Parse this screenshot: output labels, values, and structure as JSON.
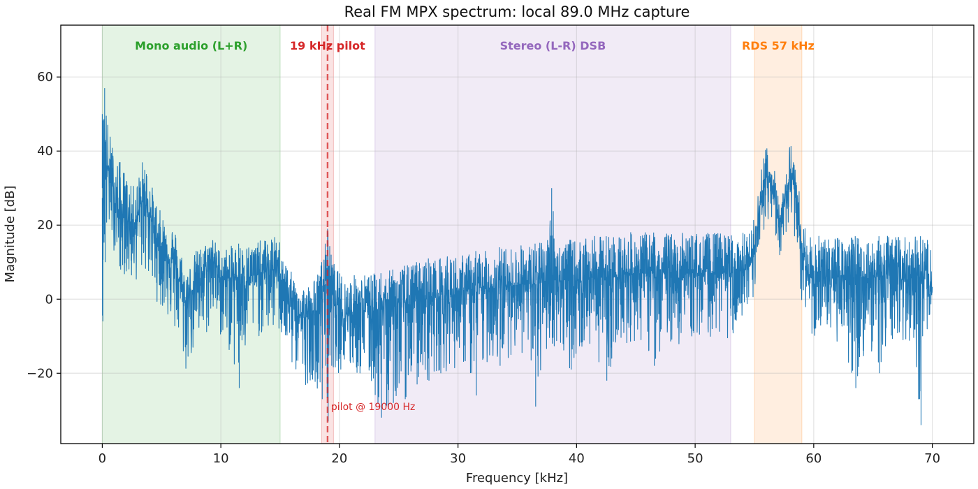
{
  "chart_data": {
    "type": "line",
    "title": "Real FM MPX spectrum: local 89.0 MHz capture",
    "xlabel": "Frequency [kHz]",
    "ylabel": "Magnitude [dB]",
    "xlim": [
      -3.5,
      73.5
    ],
    "ylim": [
      -39,
      74
    ],
    "xticks": [
      0,
      10,
      20,
      30,
      40,
      50,
      60,
      70
    ],
    "yticks": [
      -20,
      0,
      20,
      40,
      60
    ],
    "ytick_labels": [
      "−20",
      "0",
      "20",
      "40",
      "60"
    ],
    "grid": true,
    "line_color": "#1f77b4",
    "bands": [
      {
        "label": "Mono audio (L+R)",
        "x_start": 0,
        "x_end": 15,
        "color": "#2ca02c",
        "label_x": 7.5
      },
      {
        "label": "19 kHz pilot",
        "x_start": 18.5,
        "x_end": 19.5,
        "color": "#d62728",
        "label_x": 19
      },
      {
        "label": "Stereo (L-R) DSB",
        "x_start": 23,
        "x_end": 53,
        "color": "#9467bd",
        "label_x": 38
      },
      {
        "label": "RDS 57 kHz",
        "x_start": 55,
        "x_end": 59,
        "color": "#ff7f0e",
        "label_x": 57
      }
    ],
    "pilot_line": {
      "x": 19,
      "label": "pilot @ 19000 Hz",
      "color": "#d62728"
    },
    "series": [
      {
        "envelope": [
          {
            "x": 0.0,
            "y": 30,
            "hi": 50,
            "lo": -6
          },
          {
            "x": 0.2,
            "y": 38,
            "hi": 57,
            "lo": 10
          },
          {
            "x": 0.5,
            "y": 35,
            "hi": 47,
            "lo": 17
          },
          {
            "x": 1.0,
            "y": 27,
            "hi": 40,
            "lo": 13
          },
          {
            "x": 1.5,
            "y": 22,
            "hi": 37,
            "lo": 8
          },
          {
            "x": 2.0,
            "y": 22,
            "hi": 34,
            "lo": 6
          },
          {
            "x": 2.5,
            "y": 20,
            "hi": 30,
            "lo": 4
          },
          {
            "x": 3.0,
            "y": 22,
            "hi": 33,
            "lo": 5
          },
          {
            "x": 3.5,
            "y": 27,
            "hi": 39,
            "lo": 8
          },
          {
            "x": 4.0,
            "y": 23,
            "hi": 33,
            "lo": 4
          },
          {
            "x": 4.5,
            "y": 17,
            "hi": 27,
            "lo": 0
          },
          {
            "x": 5.0,
            "y": 14,
            "hi": 23,
            "lo": -3
          },
          {
            "x": 5.5,
            "y": 12,
            "hi": 22,
            "lo": -5
          },
          {
            "x": 6.0,
            "y": 10,
            "hi": 20,
            "lo": -9
          },
          {
            "x": 6.5,
            "y": 5,
            "hi": 16,
            "lo": -12
          },
          {
            "x": 7.0,
            "y": -1,
            "hi": 8,
            "lo": -21
          },
          {
            "x": 7.5,
            "y": 2,
            "hi": 10,
            "lo": -16
          },
          {
            "x": 8.0,
            "y": 5,
            "hi": 14,
            "lo": -14
          },
          {
            "x": 8.5,
            "y": 6,
            "hi": 14,
            "lo": -12
          },
          {
            "x": 9.0,
            "y": 8,
            "hi": 17,
            "lo": -9
          },
          {
            "x": 9.3,
            "y": 12,
            "hi": 17,
            "lo": -5
          },
          {
            "x": 9.8,
            "y": 6,
            "hi": 14,
            "lo": -10
          },
          {
            "x": 10.5,
            "y": 5,
            "hi": 14,
            "lo": -12
          },
          {
            "x": 11.5,
            "y": 6,
            "hi": 15,
            "lo": -24
          },
          {
            "x": 12.5,
            "y": 6,
            "hi": 15,
            "lo": -11
          },
          {
            "x": 13.5,
            "y": 7,
            "hi": 16,
            "lo": -10
          },
          {
            "x": 14.5,
            "y": 8,
            "hi": 17,
            "lo": -9
          },
          {
            "x": 15.0,
            "y": 7,
            "hi": 16,
            "lo": -10
          },
          {
            "x": 15.5,
            "y": 2,
            "hi": 10,
            "lo": -15
          },
          {
            "x": 16.0,
            "y": -2,
            "hi": 7,
            "lo": -19
          },
          {
            "x": 16.5,
            "y": -4,
            "hi": 5,
            "lo": -21
          },
          {
            "x": 17.0,
            "y": -5,
            "hi": 4,
            "lo": -24
          },
          {
            "x": 17.5,
            "y": -5,
            "hi": 4,
            "lo": -22
          },
          {
            "x": 18.0,
            "y": -4,
            "hi": 6,
            "lo": -23
          },
          {
            "x": 18.5,
            "y": 0,
            "hi": 10,
            "lo": -27
          },
          {
            "x": 18.8,
            "y": 4,
            "hi": 15,
            "lo": -18
          },
          {
            "x": 19.0,
            "y": 10,
            "hi": 19,
            "lo": -33
          },
          {
            "x": 19.3,
            "y": 3,
            "hi": 12,
            "lo": -18
          },
          {
            "x": 19.8,
            "y": -3,
            "hi": 8,
            "lo": -20
          },
          {
            "x": 20.5,
            "y": -4,
            "hi": 6,
            "lo": -20
          },
          {
            "x": 21.5,
            "y": -3,
            "hi": 7,
            "lo": -21
          },
          {
            "x": 22.5,
            "y": -3,
            "hi": 7,
            "lo": -23
          },
          {
            "x": 23.5,
            "y": -3,
            "hi": 7,
            "lo": -32
          },
          {
            "x": 24.5,
            "y": -2,
            "hi": 8,
            "lo": -28
          },
          {
            "x": 25.5,
            "y": -1,
            "hi": 9,
            "lo": -27
          },
          {
            "x": 26.5,
            "y": 0,
            "hi": 10,
            "lo": -23
          },
          {
            "x": 27.5,
            "y": 0,
            "hi": 11,
            "lo": -22
          },
          {
            "x": 28.5,
            "y": 1,
            "hi": 11,
            "lo": -20
          },
          {
            "x": 29.5,
            "y": 1,
            "hi": 12,
            "lo": -19
          },
          {
            "x": 30.5,
            "y": 2,
            "hi": 12,
            "lo": -18
          },
          {
            "x": 31.5,
            "y": 2,
            "hi": 13,
            "lo": -26
          },
          {
            "x": 32.5,
            "y": 3,
            "hi": 13,
            "lo": -17
          },
          {
            "x": 33.5,
            "y": 3,
            "hi": 14,
            "lo": -18
          },
          {
            "x": 34.5,
            "y": 4,
            "hi": 14,
            "lo": -15
          },
          {
            "x": 35.5,
            "y": 4,
            "hi": 15,
            "lo": -15
          },
          {
            "x": 36.5,
            "y": 4,
            "hi": 15,
            "lo": -29
          },
          {
            "x": 37.5,
            "y": 5,
            "hi": 16,
            "lo": -15
          },
          {
            "x": 37.9,
            "y": 8,
            "hi": 30,
            "lo": -12
          },
          {
            "x": 38.3,
            "y": 5,
            "hi": 16,
            "lo": -14
          },
          {
            "x": 39.5,
            "y": 5,
            "hi": 16,
            "lo": -19
          },
          {
            "x": 40.5,
            "y": 5,
            "hi": 16,
            "lo": -14
          },
          {
            "x": 41.5,
            "y": 6,
            "hi": 17,
            "lo": -14
          },
          {
            "x": 42.5,
            "y": 6,
            "hi": 17,
            "lo": -22
          },
          {
            "x": 43.5,
            "y": 6,
            "hi": 18,
            "lo": -13
          },
          {
            "x": 44.5,
            "y": 7,
            "hi": 18,
            "lo": -12
          },
          {
            "x": 45.5,
            "y": 7,
            "hi": 18,
            "lo": -12
          },
          {
            "x": 46.5,
            "y": 7,
            "hi": 18,
            "lo": -18
          },
          {
            "x": 47.5,
            "y": 7,
            "hi": 18,
            "lo": -11
          },
          {
            "x": 48.5,
            "y": 7,
            "hi": 18,
            "lo": -13
          },
          {
            "x": 49.5,
            "y": 7,
            "hi": 18,
            "lo": -11
          },
          {
            "x": 50.5,
            "y": 7,
            "hi": 18,
            "lo": -11
          },
          {
            "x": 51.5,
            "y": 7,
            "hi": 18,
            "lo": -10
          },
          {
            "x": 52.5,
            "y": 7,
            "hi": 18,
            "lo": -11
          },
          {
            "x": 53.5,
            "y": 7,
            "hi": 18,
            "lo": -10
          },
          {
            "x": 54.5,
            "y": 8,
            "hi": 18,
            "lo": -9
          },
          {
            "x": 55.0,
            "y": 12,
            "hi": 22,
            "lo": -2
          },
          {
            "x": 55.5,
            "y": 27,
            "hi": 35,
            "lo": 12
          },
          {
            "x": 56.0,
            "y": 33,
            "hi": 42,
            "lo": 22
          },
          {
            "x": 56.5,
            "y": 30,
            "hi": 38,
            "lo": 20
          },
          {
            "x": 57.0,
            "y": 22,
            "hi": 30,
            "lo": 12
          },
          {
            "x": 57.3,
            "y": 20,
            "hi": 28,
            "lo": 10
          },
          {
            "x": 57.7,
            "y": 30,
            "hi": 38,
            "lo": 18
          },
          {
            "x": 58.0,
            "y": 33,
            "hi": 43,
            "lo": 22
          },
          {
            "x": 58.5,
            "y": 29,
            "hi": 37,
            "lo": 15
          },
          {
            "x": 59.0,
            "y": 14,
            "hi": 23,
            "lo": -2
          },
          {
            "x": 59.5,
            "y": 6,
            "hi": 17,
            "lo": -10
          },
          {
            "x": 60.5,
            "y": 6,
            "hi": 17,
            "lo": -13
          },
          {
            "x": 61.5,
            "y": 6,
            "hi": 17,
            "lo": -11
          },
          {
            "x": 62.5,
            "y": 6,
            "hi": 17,
            "lo": -13
          },
          {
            "x": 63.5,
            "y": 6,
            "hi": 17,
            "lo": -24
          },
          {
            "x": 64.5,
            "y": 6,
            "hi": 17,
            "lo": -12
          },
          {
            "x": 65.5,
            "y": 6,
            "hi": 17,
            "lo": -20
          },
          {
            "x": 66.5,
            "y": 6,
            "hi": 17,
            "lo": -12
          },
          {
            "x": 67.5,
            "y": 6,
            "hi": 17,
            "lo": -11
          },
          {
            "x": 68.5,
            "y": 6,
            "hi": 17,
            "lo": -13
          },
          {
            "x": 69.0,
            "y": 6,
            "hi": 17,
            "lo": -34
          },
          {
            "x": 69.5,
            "y": 6,
            "hi": 16,
            "lo": -11
          },
          {
            "x": 70.0,
            "y": 2,
            "hi": 16,
            "lo": -6
          }
        ]
      }
    ]
  }
}
